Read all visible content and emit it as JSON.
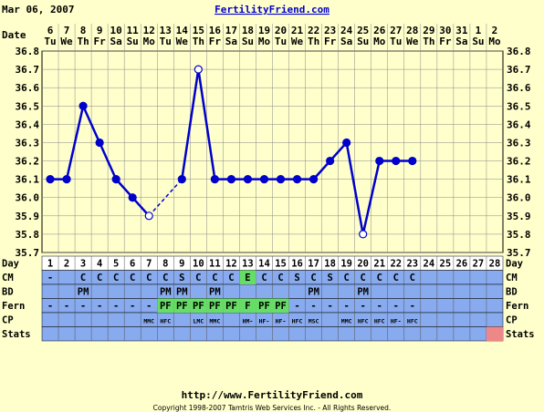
{
  "header": {
    "date": "Mar 06, 2007",
    "site": "FertilityFriend.com"
  },
  "footer": {
    "url": "http://www.FertilityFriend.com",
    "copyright": "Copyright 1998-2007 Tamtris Web Services Inc. - All Rights Reserved."
  },
  "colors": {
    "background": "#ffffcc",
    "line": "#0000cc",
    "row_blue": "#88aaee",
    "fern_green": "#66dd66",
    "stats_pink": "#ee8888",
    "cycle_day_row": "#ffffff"
  },
  "chart_data": {
    "type": "line",
    "row_labels": {
      "date": "Date",
      "day": "Day",
      "cm": "CM",
      "bd": "BD",
      "fern": "Fern",
      "cp": "CP",
      "stats": "Stats"
    },
    "dates": [
      "6",
      "7",
      "8",
      "9",
      "10",
      "11",
      "12",
      "13",
      "14",
      "15",
      "16",
      "17",
      "18",
      "19",
      "20",
      "21",
      "22",
      "23",
      "24",
      "25",
      "26",
      "27",
      "28",
      "29",
      "30",
      "31",
      "1",
      "2"
    ],
    "weekdays": [
      "Tu",
      "We",
      "Th",
      "Fr",
      "Sa",
      "Su",
      "Mo",
      "Tu",
      "We",
      "Th",
      "Fr",
      "Sa",
      "Su",
      "Mo",
      "Tu",
      "We",
      "Th",
      "Fr",
      "Sa",
      "Su",
      "Mo",
      "Tu",
      "We",
      "Th",
      "Fr",
      "Sa",
      "Su",
      "Mo"
    ],
    "cycle_days": [
      "1",
      "2",
      "3",
      "4",
      "5",
      "6",
      "7",
      "8",
      "9",
      "10",
      "11",
      "12",
      "13",
      "14",
      "15",
      "16",
      "17",
      "18",
      "19",
      "20",
      "21",
      "22",
      "23",
      "24",
      "25",
      "26",
      "27",
      "28"
    ],
    "y_ticks": [
      "36.8",
      "36.7",
      "36.6",
      "36.5",
      "36.4",
      "36.3",
      "36.2",
      "36.1",
      "36.0",
      "35.9",
      "35.8",
      "35.7"
    ],
    "ylim": [
      35.7,
      36.8
    ],
    "temps": [
      36.1,
      36.1,
      36.5,
      36.3,
      36.1,
      36.0,
      35.9,
      null,
      36.1,
      36.7,
      36.1,
      36.1,
      36.1,
      36.1,
      36.1,
      36.1,
      36.1,
      36.2,
      36.3,
      35.8,
      36.2,
      36.2,
      36.2,
      null,
      null,
      null,
      null,
      null
    ],
    "discarded_days": [
      7,
      10,
      20
    ],
    "dashed_segments": [
      [
        7,
        9
      ]
    ],
    "cm": [
      "-",
      "",
      "C",
      "C",
      "C",
      "C",
      "C",
      "C",
      "S",
      "C",
      "C",
      "C",
      "E",
      "C",
      "C",
      "S",
      "C",
      "S",
      "C",
      "C",
      "C",
      "C",
      "C",
      "",
      "",
      "",
      "",
      ""
    ],
    "cm_highlight": [
      13
    ],
    "bd": [
      "",
      "",
      "PM",
      "",
      "",
      "",
      "",
      "PM",
      "PM",
      "",
      "PM",
      "",
      "",
      "",
      "",
      "",
      "PM",
      "",
      "",
      "PM",
      "",
      "",
      "",
      "",
      "",
      "",
      "",
      ""
    ],
    "fern": [
      "-",
      "-",
      "-",
      "-",
      "-",
      "-",
      "-",
      "PF",
      "PF",
      "PF",
      "PF",
      "PF",
      "F",
      "PF",
      "PF",
      "-",
      "-",
      "-",
      "-",
      "-",
      "-",
      "-",
      "-",
      "",
      "",
      "",
      "",
      ""
    ],
    "fern_highlight": [
      8,
      9,
      10,
      11,
      12,
      13,
      14,
      15
    ],
    "cp": [
      "",
      "",
      "",
      "",
      "",
      "",
      "MMC",
      "HFC",
      "",
      "LMC",
      "MMC",
      "",
      "HM-",
      "HF-",
      "HF-",
      "HFC",
      "MSC",
      "",
      "MMC",
      "HFC",
      "HFC",
      "HF-",
      "HFC",
      "",
      "",
      "",
      "",
      ""
    ],
    "stats_highlight": [
      28
    ]
  }
}
